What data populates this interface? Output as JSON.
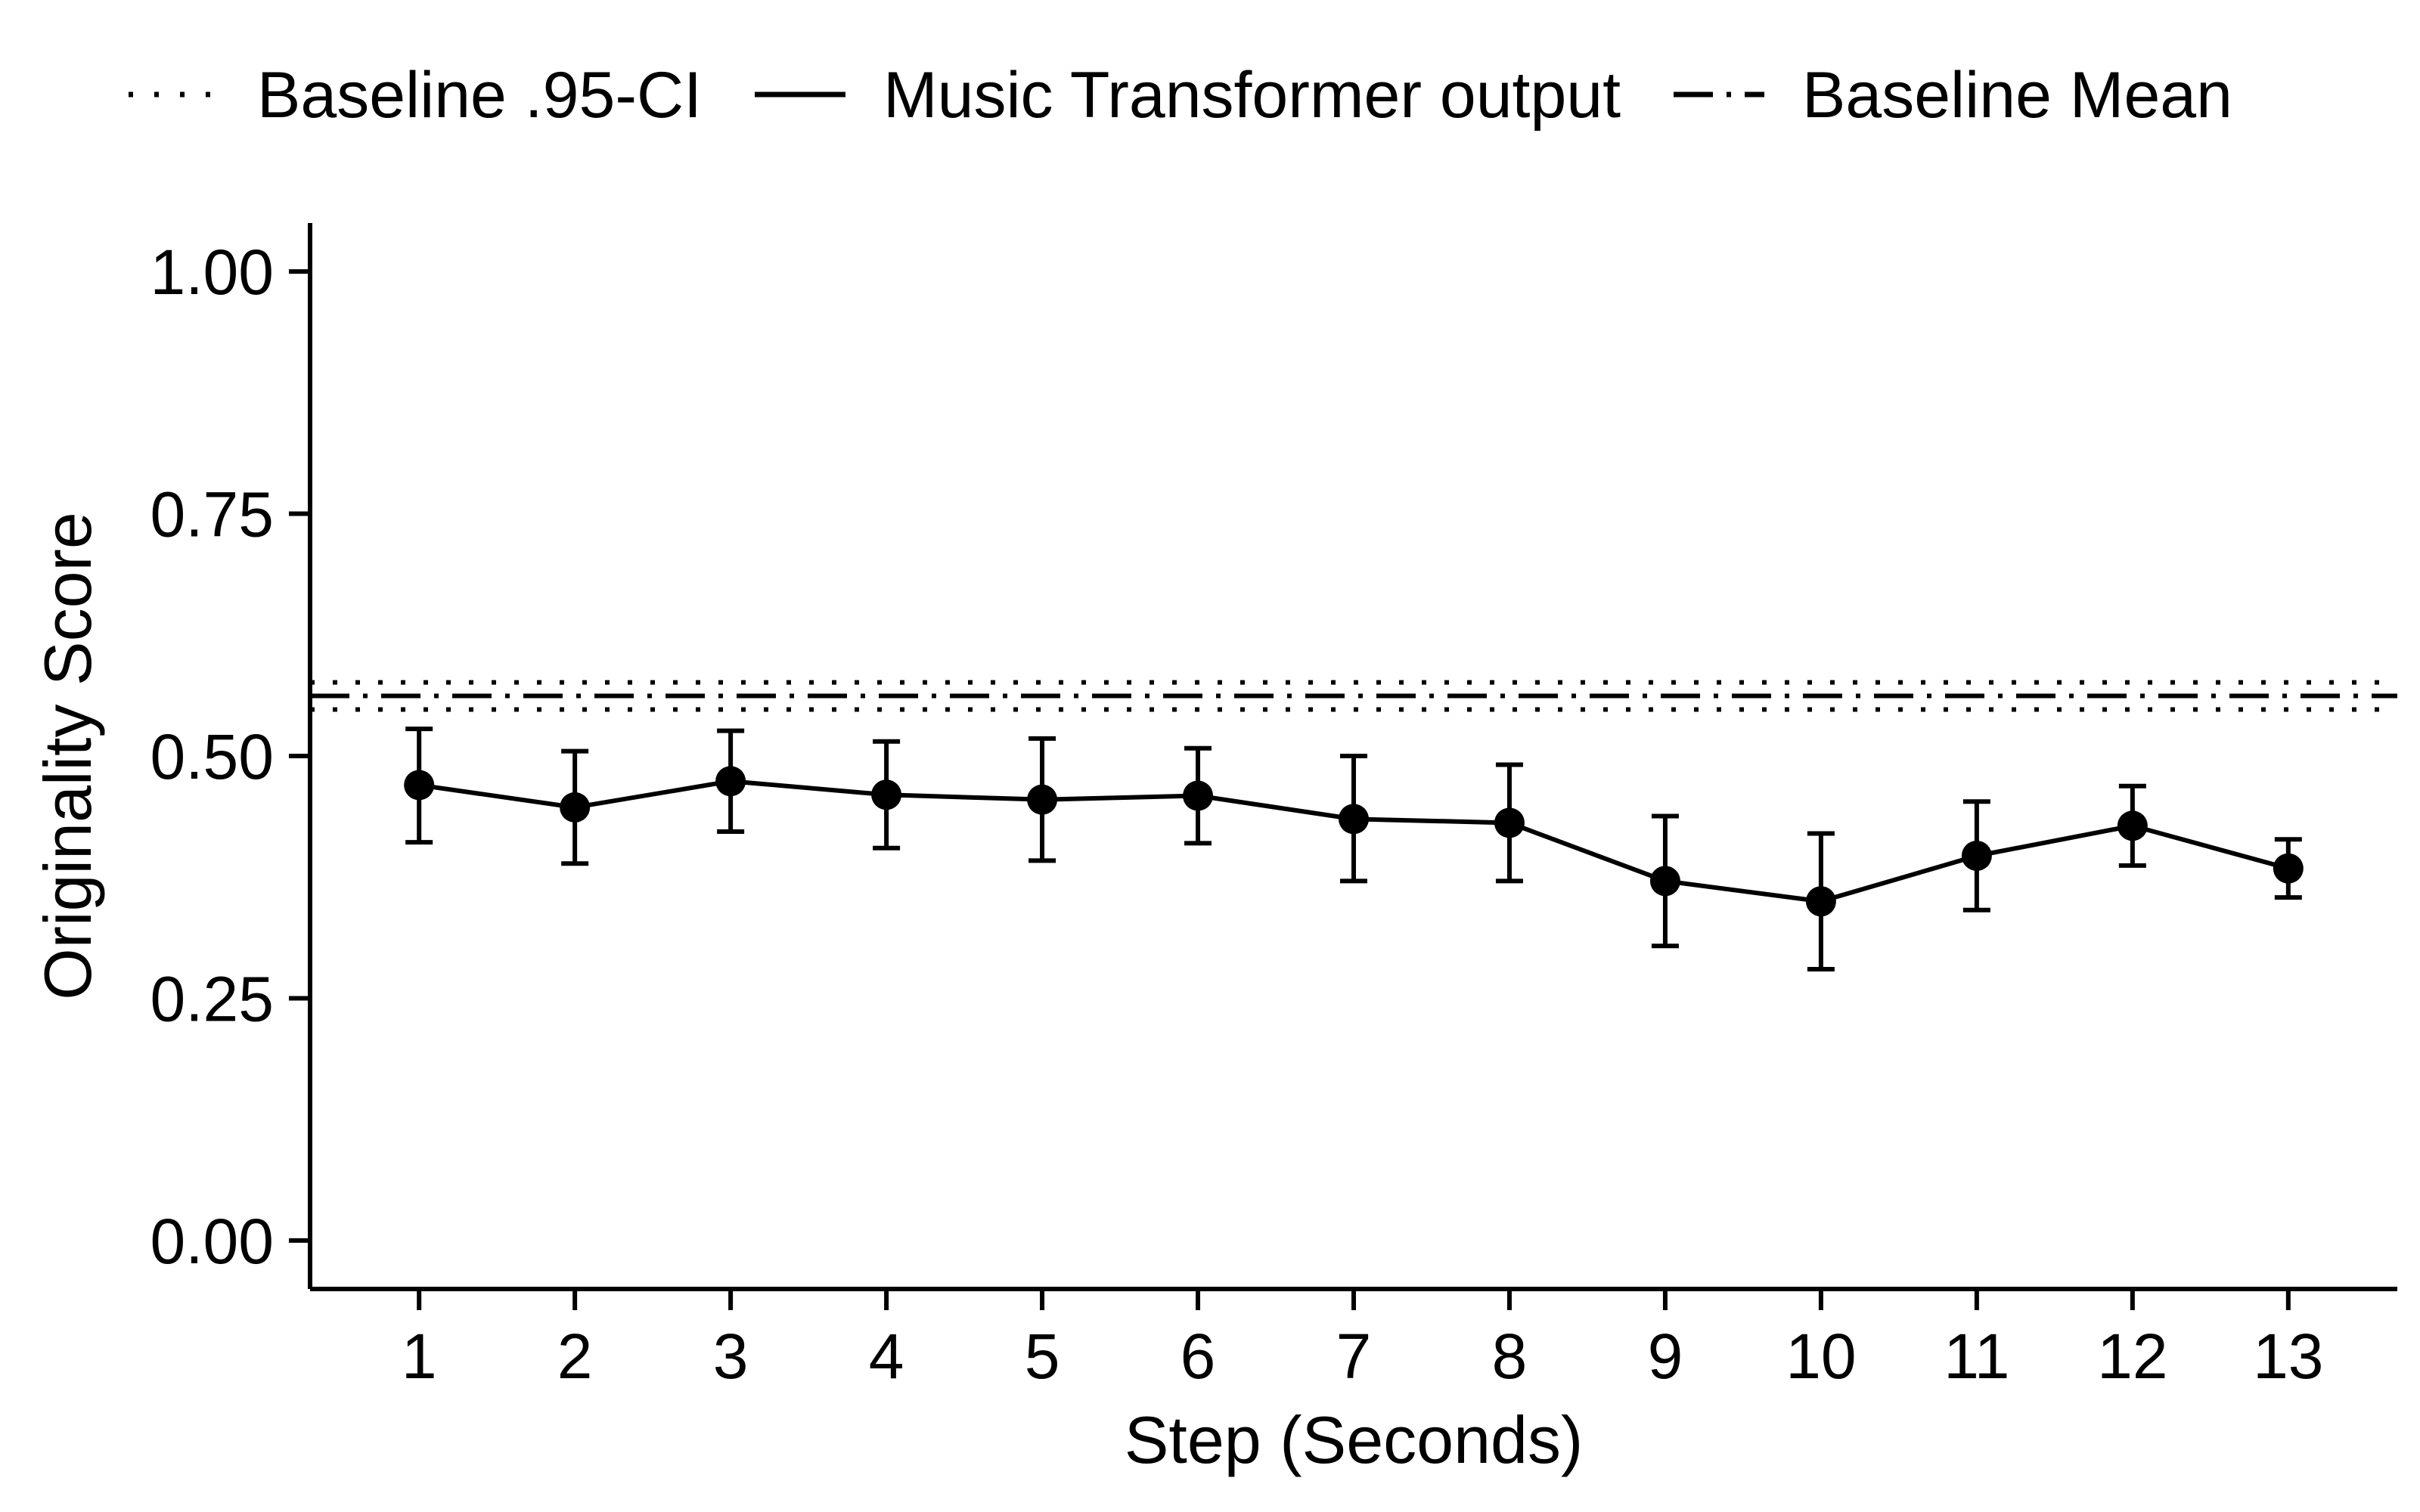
{
  "chart_data": {
    "type": "line",
    "title": "",
    "xlabel": "Step (Seconds)",
    "ylabel": "Originality Score",
    "x": [
      1,
      2,
      3,
      4,
      5,
      6,
      7,
      8,
      9,
      10,
      11,
      12,
      13
    ],
    "x_tick_labels": [
      "1",
      "2",
      "3",
      "4",
      "5",
      "6",
      "7",
      "8",
      "9",
      "10",
      "11",
      "12",
      "13"
    ],
    "xlim": [
      0.3,
      13.7
    ],
    "ylim": [
      -0.05,
      1.05
    ],
    "y_ticks": [
      0.0,
      0.25,
      0.5,
      0.75,
      1.0
    ],
    "y_tick_labels": [
      "0.00",
      "0.25",
      "0.50",
      "0.75",
      "1.00"
    ],
    "grid": false,
    "legend": {
      "position": "top",
      "entries": [
        {
          "label": "Baseline .95-CI",
          "style": "dotted"
        },
        {
          "label": "Music Transformer output",
          "style": "solid"
        },
        {
          "label": "Baseline Mean",
          "style": "dashdot"
        }
      ]
    },
    "series": [
      {
        "name": "Music Transformer output",
        "values": [
          0.47,
          0.447,
          0.474,
          0.46,
          0.455,
          0.459,
          0.435,
          0.431,
          0.371,
          0.35,
          0.397,
          0.428,
          0.384
        ],
        "error_low": [
          0.411,
          0.389,
          0.422,
          0.405,
          0.392,
          0.41,
          0.371,
          0.371,
          0.304,
          0.28,
          0.341,
          0.387,
          0.354
        ],
        "error_high": [
          0.528,
          0.505,
          0.526,
          0.515,
          0.518,
          0.508,
          0.5,
          0.491,
          0.438,
          0.42,
          0.453,
          0.469,
          0.414
        ]
      }
    ],
    "reference_lines": [
      {
        "legend": "Baseline Mean",
        "value": 0.562,
        "style": "dashdot"
      },
      {
        "legend": "Baseline .95-CI",
        "value": 0.576,
        "style": "dotted"
      },
      {
        "legend": "Baseline .95-CI",
        "value": 0.548,
        "style": "dotted"
      }
    ],
    "colors": {
      "foreground": "#000000",
      "background": "#ffffff"
    }
  }
}
